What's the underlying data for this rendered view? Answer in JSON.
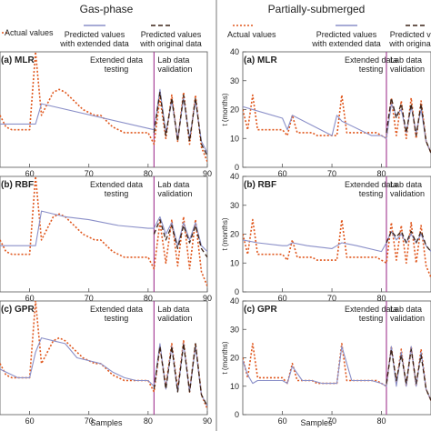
{
  "figure": {
    "left_title": "Gas-phase",
    "right_title": "Partially-submerged",
    "xlabel": "Samples"
  },
  "legend_left": {
    "actual": "Actual values",
    "ext_1": "Predicted values",
    "ext_2": "with extended data",
    "orig_1": "Predicted values",
    "orig_2": "with original data"
  },
  "legend_right": {
    "actual": "Actual values",
    "ext_1": "Predicted values",
    "ext_2": "with extended data",
    "orig_1": "Predicted values",
    "orig_2": "with original data"
  },
  "region_labels": {
    "ext_1": "Extended data",
    "ext_2": "testing",
    "lab_1": "Lab data",
    "lab_2": "validation"
  },
  "colors": {
    "actual": "#e0571d",
    "extended": "#8a8fc8",
    "original": "#3a2216",
    "divider": "#a0338f",
    "frame": "#555555"
  },
  "chart_data": [
    {
      "type": "line",
      "panel": "(a) MLR",
      "column": "Gas-phase",
      "xlim": [
        55,
        90
      ],
      "xticks": [
        60,
        70,
        80,
        90
      ],
      "ylim": [
        0,
        40
      ],
      "divider_x": 81,
      "series": [
        {
          "name": "Actual values",
          "x": [
            55,
            56,
            57,
            58,
            59,
            60,
            61,
            62,
            63,
            64,
            65,
            66,
            67,
            68,
            69,
            70,
            71,
            72,
            73,
            74,
            75,
            76,
            77,
            78,
            79,
            80,
            81,
            82,
            83,
            84,
            85,
            86,
            87,
            88,
            89,
            90
          ],
          "y": [
            18,
            14,
            13,
            13,
            13,
            13,
            40,
            18,
            22,
            26,
            27,
            26,
            24,
            22,
            20,
            19,
            18,
            18,
            16,
            14,
            13,
            12,
            12,
            12,
            12,
            12,
            8,
            24,
            10,
            25,
            9,
            26,
            8,
            25,
            7,
            2
          ]
        },
        {
          "name": "Predicted values with extended data",
          "x": [
            55,
            61,
            62,
            81,
            82,
            83,
            84,
            85,
            86,
            87,
            88,
            89,
            90
          ],
          "y": [
            15,
            15,
            22,
            13,
            27,
            12,
            23,
            10,
            24,
            10,
            23,
            9,
            5
          ]
        },
        {
          "name": "Predicted values with original data",
          "x": [
            81,
            82,
            83,
            84,
            85,
            86,
            87,
            88,
            89,
            90
          ],
          "y": [
            12,
            26,
            11,
            24,
            9,
            25,
            9,
            24,
            8,
            4
          ]
        }
      ]
    },
    {
      "type": "line",
      "panel": "(b) RBF",
      "column": "Gas-phase",
      "xlim": [
        55,
        90
      ],
      "xticks": [
        60,
        70,
        80,
        90
      ],
      "ylim": [
        0,
        40
      ],
      "divider_x": 81,
      "series": [
        {
          "name": "Actual values",
          "x": [
            55,
            56,
            57,
            58,
            59,
            60,
            61,
            62,
            63,
            64,
            65,
            66,
            67,
            68,
            69,
            70,
            71,
            72,
            73,
            74,
            75,
            76,
            77,
            78,
            79,
            80,
            81,
            82,
            83,
            84,
            85,
            86,
            87,
            88,
            89,
            90
          ],
          "y": [
            18,
            14,
            13,
            13,
            13,
            13,
            40,
            18,
            22,
            26,
            27,
            26,
            24,
            22,
            20,
            19,
            18,
            18,
            16,
            14,
            13,
            12,
            12,
            12,
            12,
            12,
            8,
            24,
            10,
            25,
            9,
            26,
            8,
            25,
            7,
            2
          ]
        },
        {
          "name": "Predicted values with extended data",
          "x": [
            55,
            60,
            61,
            62,
            66,
            70,
            75,
            80,
            81,
            82,
            83,
            84,
            85,
            86,
            87,
            88,
            89,
            90
          ],
          "y": [
            16,
            16,
            16,
            28,
            26,
            25,
            23,
            22,
            22,
            26,
            20,
            24,
            16,
            24,
            18,
            24,
            16,
            14
          ]
        },
        {
          "name": "Predicted values with original data",
          "x": [
            81,
            82,
            83,
            84,
            85,
            86,
            87,
            88,
            89,
            90
          ],
          "y": [
            20,
            25,
            18,
            23,
            15,
            23,
            17,
            23,
            15,
            12
          ]
        }
      ]
    },
    {
      "type": "line",
      "panel": "(c) GPR",
      "column": "Gas-phase",
      "xlim": [
        55,
        90
      ],
      "xticks": [
        60,
        70,
        80,
        90
      ],
      "ylim": [
        0,
        40
      ],
      "divider_x": 81,
      "series": [
        {
          "name": "Actual values",
          "x": [
            55,
            56,
            57,
            58,
            59,
            60,
            61,
            62,
            63,
            64,
            65,
            66,
            67,
            68,
            69,
            70,
            71,
            72,
            73,
            74,
            75,
            76,
            77,
            78,
            79,
            80,
            81,
            82,
            83,
            84,
            85,
            86,
            87,
            88,
            89,
            90
          ],
          "y": [
            18,
            14,
            13,
            13,
            13,
            13,
            40,
            18,
            22,
            26,
            27,
            26,
            24,
            22,
            20,
            19,
            18,
            18,
            16,
            14,
            13,
            12,
            12,
            12,
            12,
            12,
            8,
            24,
            10,
            25,
            9,
            26,
            8,
            25,
            7,
            2
          ]
        },
        {
          "name": "Predicted values with extended data",
          "x": [
            55,
            58,
            59,
            60,
            61,
            62,
            64,
            66,
            68,
            70,
            72,
            74,
            76,
            78,
            80,
            81,
            82,
            83,
            84,
            85,
            86,
            87,
            88,
            89,
            90
          ],
          "y": [
            16,
            13,
            13,
            13,
            22,
            27,
            26,
            25,
            20,
            19,
            18,
            15,
            13,
            12,
            12,
            10,
            25,
            9,
            24,
            8,
            25,
            8,
            24,
            7,
            3
          ]
        },
        {
          "name": "Predicted values with original data",
          "x": [
            81,
            82,
            83,
            84,
            85,
            86,
            87,
            88,
            89,
            90
          ],
          "y": [
            9,
            24,
            9,
            24,
            8,
            25,
            8,
            25,
            7,
            3
          ]
        }
      ]
    },
    {
      "type": "line",
      "panel": "(a) MLR",
      "column": "Partially-submerged",
      "xlim": [
        52,
        90
      ],
      "xticks": [
        60,
        70,
        80
      ],
      "ylim": [
        0,
        40
      ],
      "yticks": [
        0,
        10,
        20,
        30,
        40
      ],
      "ylabel": "t (months)",
      "divider_x": 81,
      "series": [
        {
          "name": "Actual values",
          "x": [
            52,
            53,
            54,
            55,
            56,
            57,
            58,
            59,
            60,
            61,
            62,
            63,
            64,
            65,
            66,
            67,
            68,
            69,
            70,
            71,
            72,
            73,
            74,
            75,
            76,
            77,
            78,
            79,
            80,
            81,
            82,
            83,
            84,
            85,
            86,
            87,
            88,
            89,
            90
          ],
          "y": [
            20,
            13,
            25,
            13,
            13,
            13,
            13,
            13,
            13,
            11,
            18,
            12,
            12,
            12,
            12,
            11,
            11,
            11,
            11,
            11,
            25,
            12,
            12,
            12,
            12,
            12,
            12,
            12,
            11,
            10,
            24,
            11,
            23,
            10,
            24,
            10,
            23,
            9,
            5
          ]
        },
        {
          "name": "Predicted values with extended data",
          "x": [
            52,
            60,
            61,
            62,
            70,
            71,
            72,
            78,
            80,
            81,
            82,
            83,
            84,
            85,
            86,
            87,
            88,
            89,
            90
          ],
          "y": [
            21,
            17,
            13,
            18,
            11,
            18,
            16,
            11,
            11,
            10,
            22,
            18,
            20,
            12,
            21,
            12,
            20,
            9,
            5
          ]
        },
        {
          "name": "Predicted values with original data",
          "x": [
            81,
            82,
            83,
            84,
            85,
            86,
            87,
            88,
            89,
            90
          ],
          "y": [
            12,
            24,
            17,
            22,
            12,
            22,
            11,
            22,
            9,
            5
          ]
        }
      ]
    },
    {
      "type": "line",
      "panel": "(b) RBF",
      "column": "Partially-submerged",
      "xlim": [
        52,
        90
      ],
      "xticks": [
        60,
        70,
        80
      ],
      "ylim": [
        0,
        40
      ],
      "yticks": [
        0,
        10,
        20,
        30,
        40
      ],
      "ylabel": "t (months)",
      "divider_x": 81,
      "series": [
        {
          "name": "Actual values",
          "x": [
            52,
            53,
            54,
            55,
            56,
            57,
            58,
            59,
            60,
            61,
            62,
            63,
            64,
            65,
            66,
            67,
            68,
            69,
            70,
            71,
            72,
            73,
            74,
            75,
            76,
            77,
            78,
            79,
            80,
            81,
            82,
            83,
            84,
            85,
            86,
            87,
            88,
            89,
            90
          ],
          "y": [
            20,
            13,
            25,
            13,
            13,
            13,
            13,
            13,
            13,
            11,
            18,
            12,
            12,
            12,
            12,
            11,
            11,
            11,
            11,
            11,
            25,
            12,
            12,
            12,
            12,
            12,
            12,
            12,
            11,
            10,
            24,
            11,
            23,
            10,
            24,
            10,
            23,
            9,
            5
          ]
        },
        {
          "name": "Predicted values with extended data",
          "x": [
            52,
            55,
            60,
            61,
            62,
            65,
            70,
            71,
            72,
            75,
            80,
            81,
            82,
            83,
            84,
            85,
            86,
            87,
            88,
            89,
            90
          ],
          "y": [
            18,
            17,
            16,
            16,
            17,
            16,
            15,
            16,
            17,
            16,
            14,
            17,
            21,
            18,
            20,
            17,
            20,
            17,
            20,
            16,
            14
          ]
        },
        {
          "name": "Predicted values with original data",
          "x": [
            81,
            82,
            83,
            84,
            85,
            86,
            87,
            88,
            89,
            90
          ],
          "y": [
            17,
            21,
            19,
            21,
            17,
            21,
            17,
            21,
            16,
            14
          ]
        }
      ]
    },
    {
      "type": "line",
      "panel": "(c) GPR",
      "column": "Partially-submerged",
      "xlim": [
        52,
        90
      ],
      "xticks": [
        60,
        70,
        80
      ],
      "ylim": [
        0,
        40
      ],
      "yticks": [
        0,
        10,
        20,
        30,
        40
      ],
      "ylabel": "t (months)",
      "divider_x": 81,
      "series": [
        {
          "name": "Actual values",
          "x": [
            52,
            53,
            54,
            55,
            56,
            57,
            58,
            59,
            60,
            61,
            62,
            63,
            64,
            65,
            66,
            67,
            68,
            69,
            70,
            71,
            72,
            73,
            74,
            75,
            76,
            77,
            78,
            79,
            80,
            81,
            82,
            83,
            84,
            85,
            86,
            87,
            88,
            89,
            90
          ],
          "y": [
            20,
            13,
            25,
            13,
            13,
            13,
            13,
            13,
            13,
            11,
            18,
            12,
            12,
            12,
            12,
            11,
            11,
            11,
            11,
            11,
            25,
            12,
            12,
            12,
            12,
            12,
            12,
            12,
            11,
            10,
            24,
            11,
            23,
            10,
            24,
            10,
            23,
            9,
            5
          ]
        },
        {
          "name": "Predicted values with extended data",
          "x": [
            52,
            53,
            54,
            55,
            56,
            58,
            60,
            61,
            62,
            64,
            66,
            68,
            70,
            71,
            72,
            74,
            76,
            78,
            80,
            81,
            82,
            83,
            84,
            85,
            86,
            87,
            88,
            89,
            90
          ],
          "y": [
            19,
            14,
            11,
            12,
            12,
            12,
            12,
            11,
            17,
            12,
            12,
            11,
            11,
            11,
            24,
            12,
            12,
            12,
            11,
            10,
            24,
            10,
            22,
            10,
            24,
            10,
            22,
            9,
            5
          ]
        },
        {
          "name": "Predicted values with original data",
          "x": [
            81,
            82,
            83,
            84,
            85,
            86,
            87,
            88,
            89,
            90
          ],
          "y": [
            11,
            23,
            12,
            21,
            11,
            23,
            11,
            21,
            9,
            5
          ]
        }
      ]
    }
  ]
}
